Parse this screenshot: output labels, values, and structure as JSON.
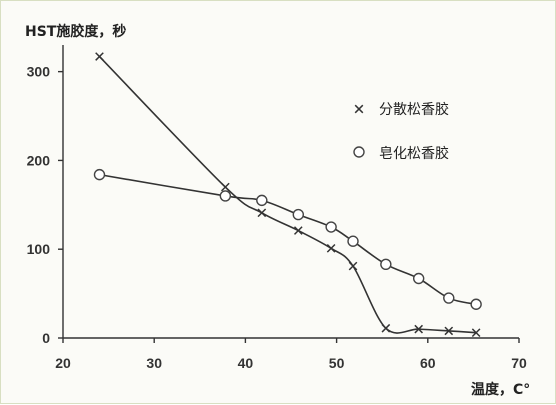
{
  "chart_data": {
    "type": "line",
    "ylabel": "HST施胶度，秒",
    "xlabel": "温度，C°",
    "xlim": [
      20,
      70
    ],
    "ylim": [
      0,
      330
    ],
    "xticks": [
      20,
      30,
      40,
      50,
      60,
      70
    ],
    "yticks": [
      0,
      100,
      200,
      300
    ],
    "grid": false,
    "legend_position": "right",
    "series": [
      {
        "name": "分散松香胶",
        "marker": "x",
        "x": [
          24,
          37.8,
          41.8,
          45.8,
          49.4,
          51.8,
          55.4,
          59,
          62.3,
          65.3
        ],
        "y": [
          317,
          170,
          141,
          121,
          101,
          81,
          11,
          10,
          8,
          6
        ]
      },
      {
        "name": "皂化松香胶",
        "marker": "o",
        "x": [
          24,
          37.8,
          41.8,
          45.8,
          49.4,
          51.8,
          55.4,
          59,
          62.3,
          65.3
        ],
        "y": [
          184,
          160,
          155,
          139,
          125,
          109,
          83,
          67,
          45,
          38
        ]
      }
    ]
  }
}
